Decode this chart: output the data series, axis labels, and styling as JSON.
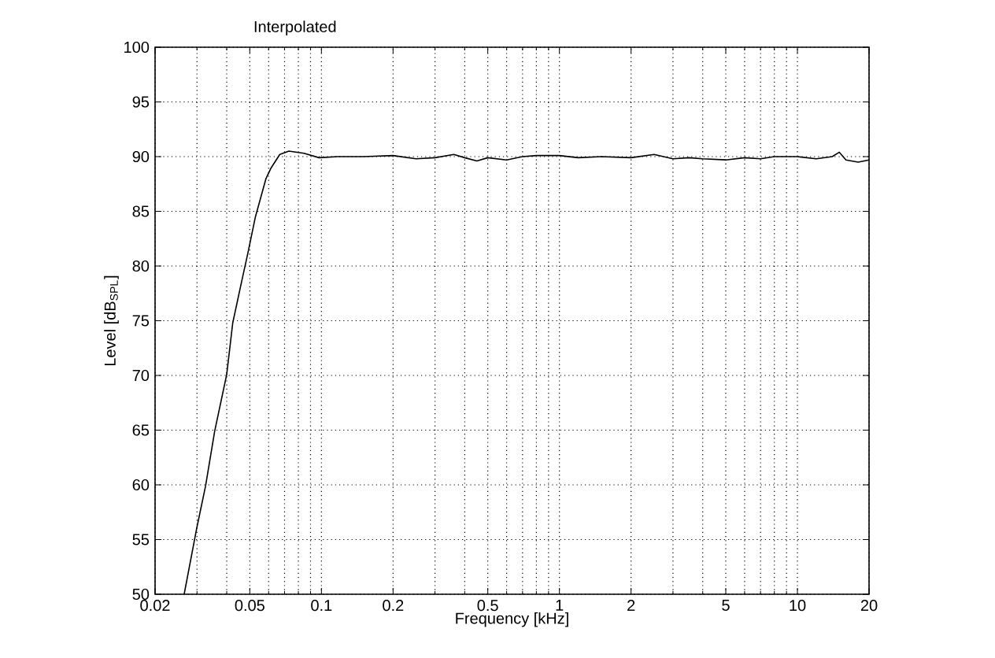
{
  "chart_data": {
    "type": "line",
    "title": "Interpolated",
    "xlabel": "Frequency [kHz]",
    "ylabel": "Level [dB$_{SPL}$]",
    "log": "x",
    "grid": true,
    "xlim": [
      0.02,
      20
    ],
    "ylim": [
      50,
      100
    ],
    "xticks": [
      0.02,
      0.05,
      0.1,
      0.2,
      0.5,
      1,
      2,
      5,
      10,
      20
    ],
    "yticks": [
      50,
      55,
      60,
      65,
      70,
      75,
      80,
      85,
      90,
      95,
      100
    ],
    "series": [
      {
        "color": "#000000",
        "x": [
          0.0265,
          0.0299,
          0.0326,
          0.0356,
          0.04,
          0.0424,
          0.0457,
          0.0491,
          0.0528,
          0.0585,
          0.0612,
          0.0668,
          0.073,
          0.0845,
          0.0978,
          0.117,
          0.15,
          0.2,
          0.25,
          0.3,
          0.36,
          0.4,
          0.45,
          0.5,
          0.6,
          0.7,
          0.8,
          1,
          1.2,
          1.5,
          2,
          2.5,
          3,
          3.5,
          4,
          5,
          6,
          7,
          8,
          10,
          12,
          14,
          15,
          16,
          18,
          20
        ],
        "values": [
          50,
          56,
          59.9,
          64.9,
          70.1,
          74.8,
          78.1,
          81.2,
          84.5,
          88,
          88.9,
          90.2,
          90.5,
          90.3,
          89.9,
          90,
          90,
          90.1,
          89.8,
          89.9,
          90.2,
          89.9,
          89.6,
          89.9,
          89.7,
          90,
          90.1,
          90.1,
          89.9,
          90,
          89.9,
          90.2,
          89.8,
          89.9,
          89.8,
          89.7,
          89.9,
          89.8,
          90,
          90,
          89.8,
          90,
          90.4,
          89.7,
          89.5,
          89.7
        ]
      }
    ]
  }
}
